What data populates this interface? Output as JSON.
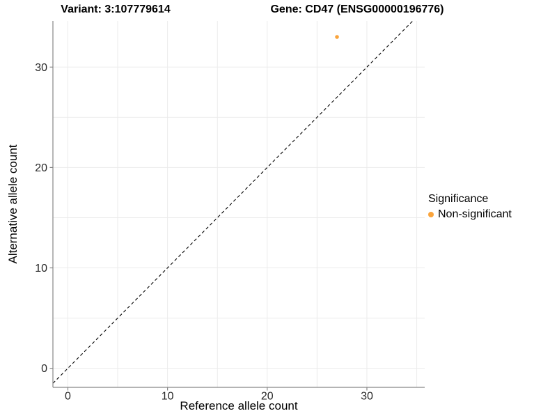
{
  "chart_data": {
    "type": "scatter",
    "title_left": "Variant: 3:107779614",
    "title_right": "Gene: CD47 (ENSG00000196776)",
    "xlabel": "Reference allele count",
    "ylabel": "Alternative allele count",
    "xlim": [
      -1.5,
      35.8
    ],
    "ylim": [
      -1.9,
      34.6
    ],
    "xticks": [
      0,
      10,
      20,
      30
    ],
    "yticks": [
      0,
      10,
      20,
      30
    ],
    "grid": {
      "on": true,
      "interval": 5,
      "color": "#EBEBEB"
    },
    "points": [
      {
        "x": 27,
        "y": 33,
        "series": "Non-significant"
      }
    ],
    "point_color": "#FAA43C",
    "point_radius": 2.8,
    "reference_line": {
      "type": "identity",
      "style": "dashed",
      "color": "#000000"
    },
    "axis_color": "#878787",
    "tick_label_color": "#262626",
    "legend": {
      "title": "Significance",
      "position": "right",
      "entries": [
        {
          "label": "Non-significant",
          "color": "#FAA43C"
        }
      ]
    }
  }
}
